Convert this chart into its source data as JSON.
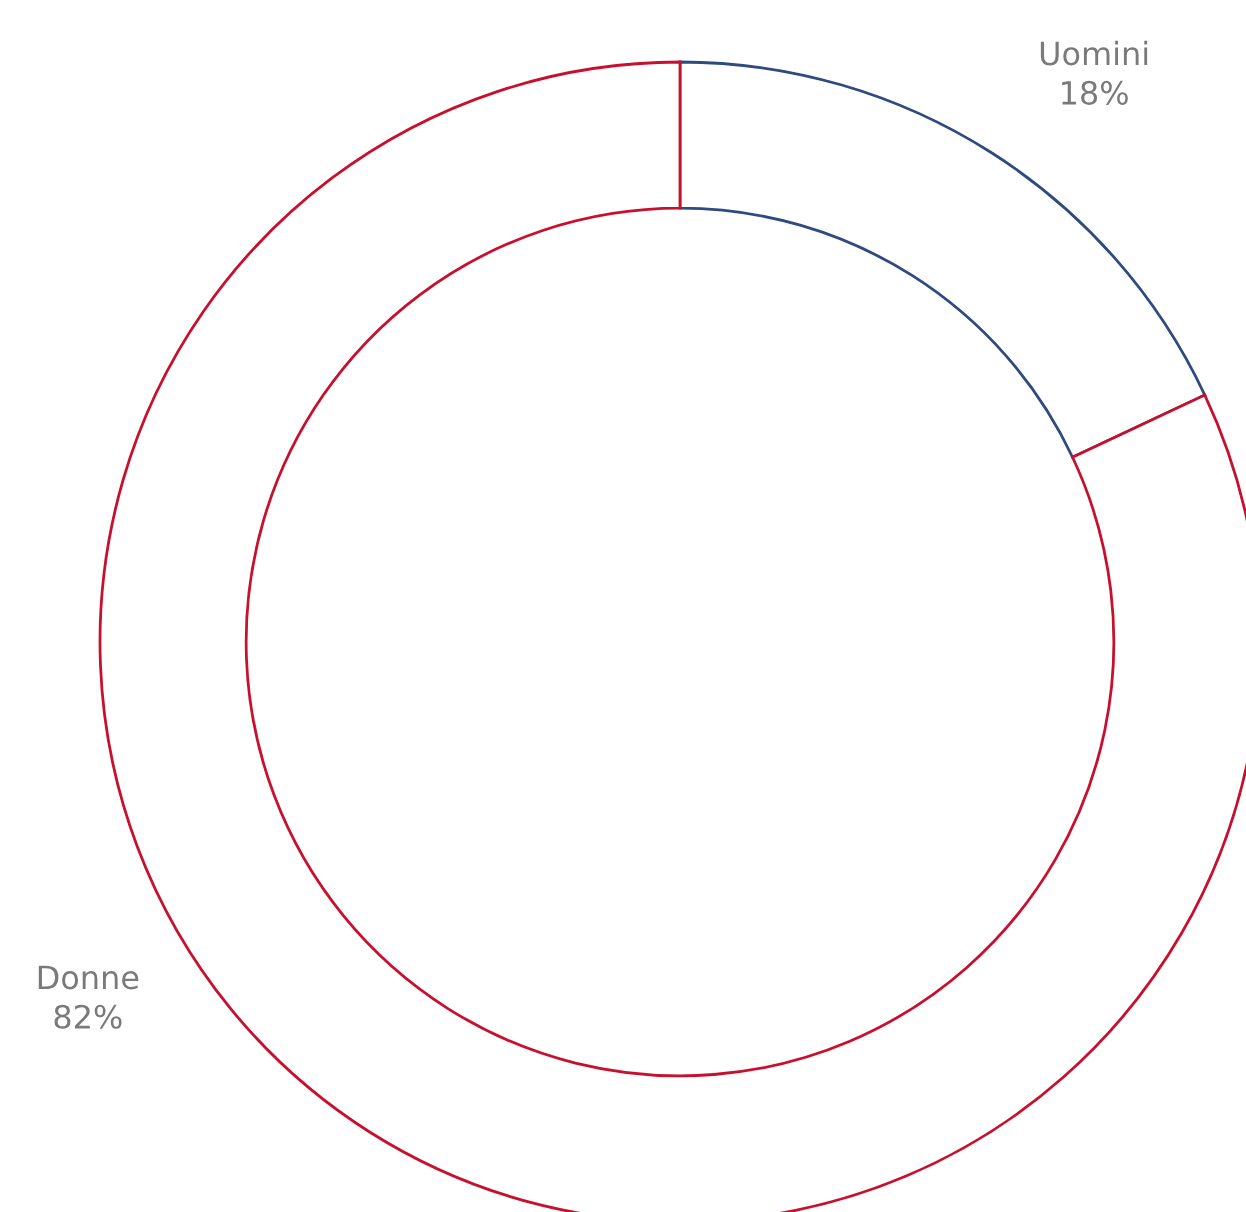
{
  "chart_data": {
    "type": "donut",
    "categories": [
      "Uomini",
      "Donne"
    ],
    "values": [
      18,
      82
    ],
    "colors": [
      "#2e4a7e",
      "#c8102e"
    ],
    "value_labels": [
      "18%",
      "82%"
    ]
  }
}
